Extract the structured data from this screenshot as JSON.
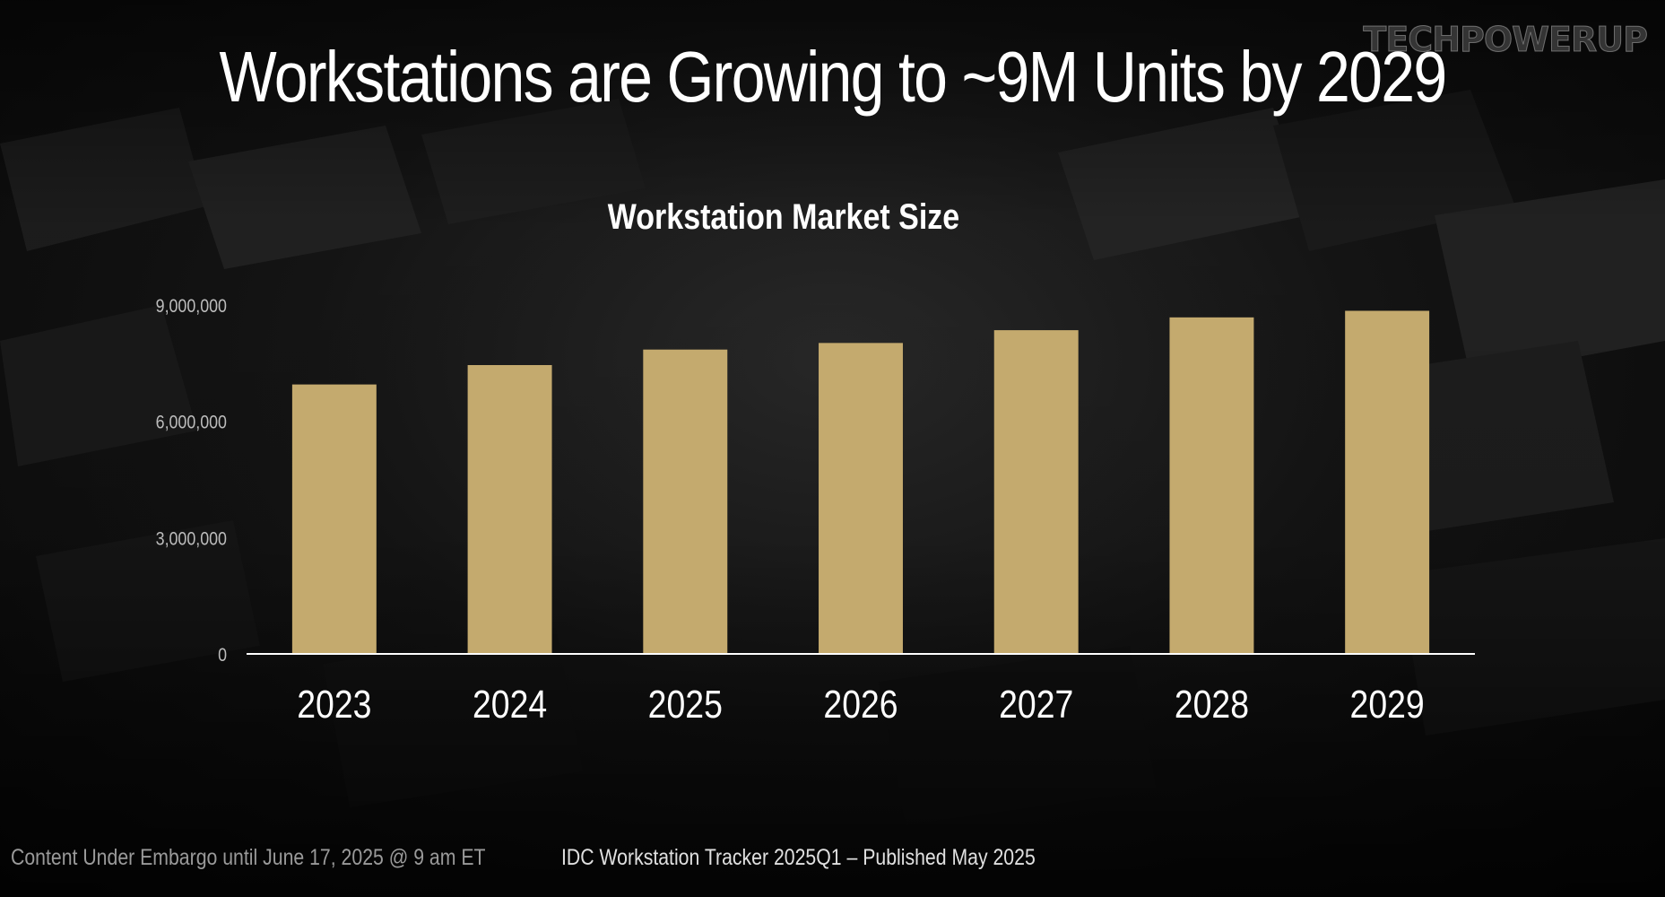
{
  "slide": {
    "title": "Workstations are Growing to ~9M Units by 2029",
    "logo_text": "TECHPOWERUP"
  },
  "footer": {
    "embargo": "Content Under Embargo until June 17, 2025 @ 9 am ET",
    "source": "IDC Workstation Tracker 2025Q1 – Published May 2025"
  },
  "colors": {
    "bar": "#c4aa6e",
    "axis": "#ffffff",
    "background": "#0b0b0b"
  },
  "chart_data": {
    "type": "bar",
    "title": "Workstation Market Size",
    "xlabel": "",
    "ylabel": "",
    "categories": [
      "2023",
      "2024",
      "2025",
      "2026",
      "2027",
      "2028",
      "2029"
    ],
    "values": [
      6950000,
      7450000,
      7850000,
      8020000,
      8350000,
      8680000,
      8850000
    ],
    "ylim": [
      0,
      9000000
    ],
    "yticks": [
      0,
      3000000,
      6000000,
      9000000
    ],
    "ytick_labels": [
      "0",
      "3,000,000",
      "6,000,000",
      "9,000,000"
    ],
    "grid": false,
    "legend": "none"
  }
}
